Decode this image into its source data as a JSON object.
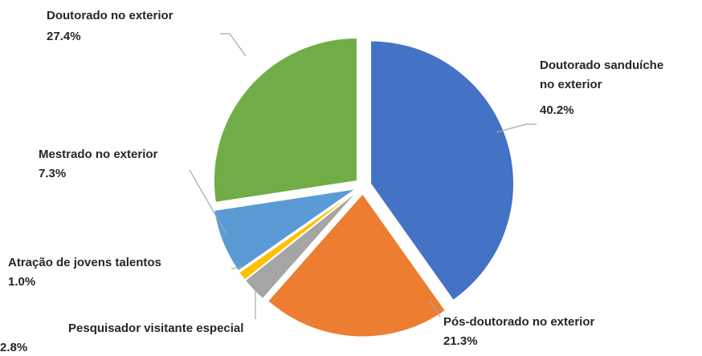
{
  "chart_data": {
    "type": "pie",
    "categories": [
      "Doutorado sanduíche no exterior",
      "Pós-doutorado no exterior",
      "Pesquisador visitante especial",
      "Atração de jovens talentos",
      "Mestrado no exterior",
      "Doutorado no exterior"
    ],
    "values": [
      40.2,
      21.3,
      2.8,
      1.0,
      7.3,
      27.4
    ],
    "value_labels": [
      "40.2%",
      "21.3%",
      "2.8%",
      "1.0%",
      "7.3%",
      "27.4%"
    ],
    "colors": [
      "#4472c4",
      "#ed7d31",
      "#a5a5a5",
      "#ffc000",
      "#5b9bd5",
      "#70ad47"
    ]
  }
}
